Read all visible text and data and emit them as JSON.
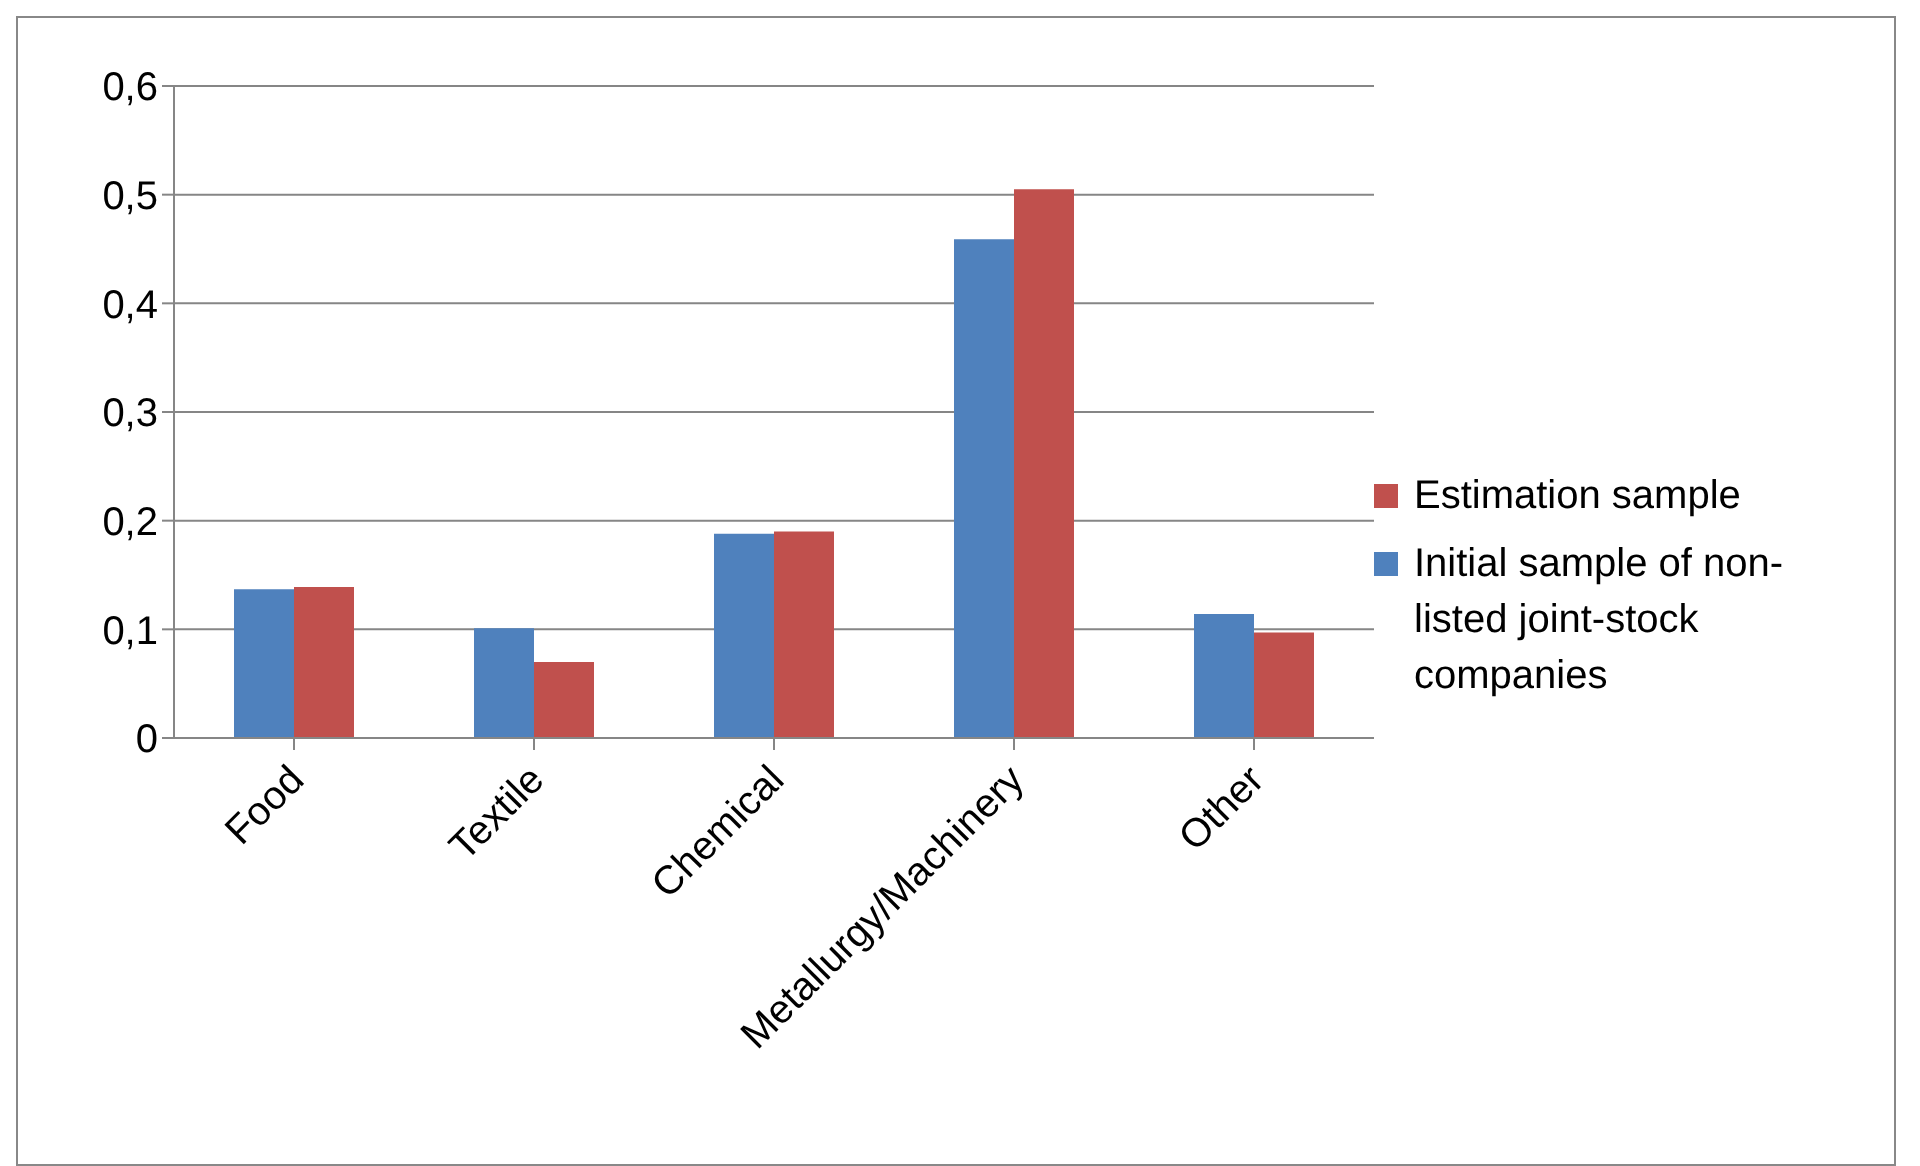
{
  "chart_data": {
    "type": "bar",
    "categories": [
      "Food",
      "Textile",
      "Chemical",
      "Metallurgy/Machinery",
      "Other"
    ],
    "series": [
      {
        "name": "Initial sample of non-listed joint-stock companies",
        "color": "#4f81bd",
        "values": [
          0.137,
          0.101,
          0.188,
          0.459,
          0.114
        ]
      },
      {
        "name": "Estimation sample",
        "color": "#c0504d",
        "values": [
          0.139,
          0.07,
          0.19,
          0.505,
          0.097
        ]
      }
    ],
    "ylim": [
      0,
      0.6
    ],
    "yticks": [
      {
        "value": 0,
        "label": "0"
      },
      {
        "value": 0.1,
        "label": "0,1"
      },
      {
        "value": 0.2,
        "label": "0,2"
      },
      {
        "value": 0.3,
        "label": "0,3"
      },
      {
        "value": 0.4,
        "label": "0,4"
      },
      {
        "value": 0.5,
        "label": "0,5"
      },
      {
        "value": 0.6,
        "label": "0,6"
      }
    ],
    "grid": "y",
    "legend": "right"
  }
}
